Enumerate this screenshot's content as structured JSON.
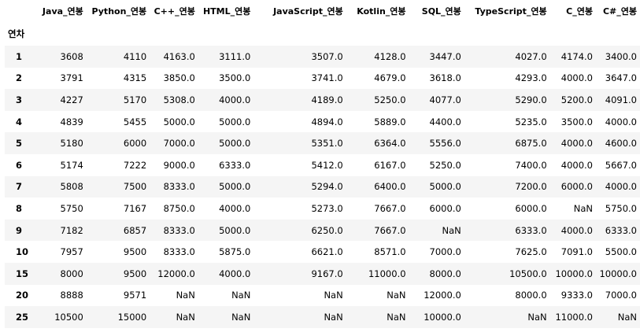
{
  "table": {
    "index_name": "연차",
    "columns": [
      "Java_연봉",
      "Python_연봉",
      "C++_연봉",
      "HTML_연봉",
      "JavaScript_연봉",
      "Kotlin_연봉",
      "SQL_연봉",
      "TypeScript_연봉",
      "C_연봉",
      "C#_연봉"
    ],
    "rows": [
      {
        "index": "1",
        "cells": [
          "3608",
          "4110",
          "4163.0",
          "3111.0",
          "3507.0",
          "4128.0",
          "3447.0",
          "4027.0",
          "4174.0",
          "3400.0"
        ]
      },
      {
        "index": "2",
        "cells": [
          "3791",
          "4315",
          "3850.0",
          "3500.0",
          "3741.0",
          "4679.0",
          "3618.0",
          "4293.0",
          "4000.0",
          "3647.0"
        ]
      },
      {
        "index": "3",
        "cells": [
          "4227",
          "5170",
          "5308.0",
          "4000.0",
          "4189.0",
          "5250.0",
          "4077.0",
          "5290.0",
          "5200.0",
          "4091.0"
        ]
      },
      {
        "index": "4",
        "cells": [
          "4839",
          "5455",
          "5000.0",
          "5000.0",
          "4894.0",
          "5889.0",
          "4400.0",
          "5235.0",
          "3500.0",
          "4000.0"
        ]
      },
      {
        "index": "5",
        "cells": [
          "5180",
          "6000",
          "7000.0",
          "5000.0",
          "5351.0",
          "6364.0",
          "5556.0",
          "6875.0",
          "4000.0",
          "4600.0"
        ]
      },
      {
        "index": "6",
        "cells": [
          "5174",
          "7222",
          "9000.0",
          "6333.0",
          "5412.0",
          "6167.0",
          "5250.0",
          "7400.0",
          "4000.0",
          "5667.0"
        ]
      },
      {
        "index": "7",
        "cells": [
          "5808",
          "7500",
          "8333.0",
          "5000.0",
          "5294.0",
          "6400.0",
          "5000.0",
          "7200.0",
          "6000.0",
          "4000.0"
        ]
      },
      {
        "index": "8",
        "cells": [
          "5750",
          "7167",
          "8750.0",
          "4000.0",
          "5273.0",
          "7667.0",
          "6000.0",
          "6000.0",
          "NaN",
          "5750.0"
        ]
      },
      {
        "index": "9",
        "cells": [
          "7182",
          "6857",
          "8333.0",
          "5000.0",
          "6250.0",
          "7667.0",
          "NaN",
          "6333.0",
          "4000.0",
          "6333.0"
        ]
      },
      {
        "index": "10",
        "cells": [
          "7957",
          "9500",
          "8333.0",
          "5875.0",
          "6621.0",
          "8571.0",
          "7000.0",
          "7625.0",
          "7091.0",
          "5500.0"
        ]
      },
      {
        "index": "15",
        "cells": [
          "8000",
          "9500",
          "12000.0",
          "4000.0",
          "9167.0",
          "11000.0",
          "8000.0",
          "10500.0",
          "10000.0",
          "10000.0"
        ]
      },
      {
        "index": "20",
        "cells": [
          "8888",
          "9571",
          "NaN",
          "NaN",
          "NaN",
          "NaN",
          "12000.0",
          "8000.0",
          "9333.0",
          "7000.0"
        ]
      },
      {
        "index": "25",
        "cells": [
          "10500",
          "15000",
          "NaN",
          "NaN",
          "NaN",
          "NaN",
          "10000.0",
          "NaN",
          "11000.0",
          "NaN"
        ]
      }
    ]
  },
  "colors": {
    "stripe": "#f5f5f5",
    "background": "#ffffff",
    "text": "#000000"
  }
}
